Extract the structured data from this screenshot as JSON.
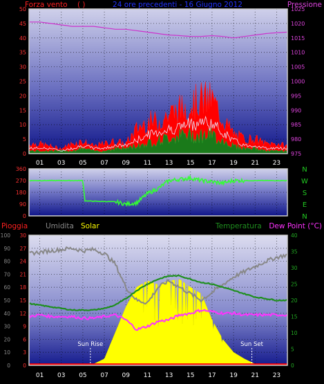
{
  "colors": {
    "wind": "#ff2020",
    "gust_fill": "#ff0000",
    "avg_wind": "#1c8a1c",
    "pressure": "#cc33cc",
    "direction": "#33ff33",
    "humidity": "#888888",
    "solar": "#ffff00",
    "temperature": "#1f8f1f",
    "dewpoint": "#ff33ff",
    "rain": "#ff0000",
    "title": "#2233ff",
    "frame": "#cfcfcf"
  },
  "chart_data": [
    {
      "type": "area",
      "name": "wind_pressure",
      "title": "24 ore precedenti  - 16 Giugno 2012",
      "left_label": "Forza vento",
      "left_unit": "( )",
      "right_label": "Pressione",
      "left_ticks": [
        "50",
        "45",
        "40",
        "35",
        "30",
        "25",
        "20",
        "15",
        "10",
        "5",
        "0"
      ],
      "right_ticks": [
        "1025",
        "1020",
        "1015",
        "1010",
        "1005",
        "1000",
        "995",
        "990",
        "985",
        "980",
        "975"
      ],
      "x_ticks": [
        "01",
        "03",
        "05",
        "07",
        "09",
        "11",
        "13",
        "15",
        "17",
        "19",
        "21",
        "23"
      ],
      "ylim_left": [
        0,
        50
      ],
      "ylim_right": [
        975,
        1025
      ],
      "x_hours": [
        0,
        1,
        2,
        3,
        4,
        5,
        6,
        7,
        8,
        9,
        10,
        11,
        12,
        13,
        14,
        15,
        16,
        17,
        18,
        19,
        20,
        21,
        22,
        23,
        24
      ],
      "gust": [
        4,
        4,
        3,
        2,
        4,
        5,
        3,
        4,
        5,
        4,
        10,
        13,
        13,
        16,
        18,
        20,
        22,
        22,
        14,
        8,
        6,
        6,
        4,
        4,
        3
      ],
      "wind": [
        2,
        2,
        2,
        1,
        2,
        3,
        2,
        2,
        3,
        3,
        5,
        7,
        8,
        9,
        10,
        11,
        12,
        11,
        8,
        5,
        3,
        3,
        2,
        2,
        2
      ],
      "avg_wind": [
        1,
        1,
        1,
        1,
        1,
        2,
        1,
        1,
        2,
        2,
        3,
        4,
        5,
        6,
        7,
        7,
        7,
        7,
        5,
        3,
        2,
        2,
        1,
        1,
        1
      ],
      "pressure": [
        1020.5,
        1020.5,
        1020.0,
        1019.5,
        1019.0,
        1019.0,
        1019.0,
        1018.5,
        1018.0,
        1018.0,
        1017.5,
        1017.0,
        1016.5,
        1016.0,
        1015.8,
        1015.5,
        1015.5,
        1015.8,
        1015.5,
        1015.0,
        1015.5,
        1016.0,
        1016.5,
        1016.8,
        1017.0
      ]
    },
    {
      "type": "line",
      "name": "wind_direction",
      "left_ticks": [
        "360",
        "270",
        "180",
        "90",
        "0"
      ],
      "right_ticks": [
        "N",
        "W",
        "S",
        "E",
        "N"
      ],
      "ylim": [
        0,
        360
      ],
      "x_hours": [
        0,
        1,
        2,
        3,
        4,
        5,
        5.2,
        6,
        7,
        8,
        9,
        10,
        11,
        12,
        13,
        14,
        15,
        16,
        17,
        18,
        19,
        20,
        21,
        22,
        23,
        24
      ],
      "direction": [
        270,
        270,
        270,
        270,
        270,
        270,
        115,
        112,
        110,
        108,
        90,
        100,
        170,
        210,
        270,
        280,
        290,
        270,
        260,
        250,
        270,
        270,
        270,
        270,
        270,
        270
      ]
    },
    {
      "type": "area",
      "name": "temperature_solar",
      "labels": {
        "rain": "Pioggia",
        "humidity": "Umidita",
        "solar": "Solar",
        "temperature": "Temperatura",
        "dewpoint": "Dew Point (°C)"
      },
      "left_ticks": [
        "100",
        "90",
        "80",
        "70",
        "60",
        "50",
        "40",
        "30",
        "20",
        "10",
        "0"
      ],
      "rain_ticks": [
        "30",
        "27",
        "24",
        "21",
        "18",
        "15",
        "12",
        "9",
        "6",
        "3",
        "0"
      ],
      "right_ticks": [
        "40",
        "35",
        "30",
        "25",
        "20",
        "15",
        "10",
        "5",
        "0"
      ],
      "x_ticks": [
        "01",
        "03",
        "05",
        "07",
        "09",
        "11",
        "13",
        "15",
        "17",
        "19",
        "21",
        "23"
      ],
      "sun_rise": {
        "label": "Sun Rise",
        "hour": 5.7
      },
      "sun_set": {
        "label": "Sun Set",
        "hour": 20.7
      },
      "x_hours": [
        0,
        1,
        2,
        3,
        4,
        5,
        6,
        7,
        8,
        9,
        10,
        11,
        12,
        13,
        14,
        15,
        16,
        17,
        18,
        19,
        20,
        21,
        22,
        23,
        24
      ],
      "humidity": [
        86,
        87,
        88,
        89,
        90,
        88,
        89,
        86,
        78,
        60,
        50,
        48,
        60,
        65,
        60,
        55,
        50,
        56,
        62,
        68,
        72,
        76,
        80,
        83,
        85
      ],
      "solar_pct": [
        0,
        0,
        0,
        0,
        0,
        0,
        1,
        5,
        25,
        45,
        60,
        65,
        62,
        65,
        66,
        60,
        55,
        35,
        20,
        10,
        5,
        1,
        0,
        0,
        0
      ],
      "temperature": [
        19,
        18.5,
        18,
        17.5,
        17,
        17,
        17,
        17.5,
        18.5,
        20.5,
        23,
        25,
        26.5,
        27.5,
        27.5,
        26.5,
        25.5,
        25,
        24,
        23,
        22,
        21,
        20.5,
        20,
        20
      ],
      "dewpoint": [
        15,
        15.5,
        15,
        15,
        15,
        14.5,
        14.5,
        15,
        15.5,
        14,
        11,
        12,
        13.5,
        14,
        15.5,
        16,
        17,
        16.5,
        16,
        16,
        15.5,
        15.5,
        15.5,
        15.5,
        15.5
      ],
      "rain": [
        0,
        0,
        0,
        0,
        0,
        0,
        0,
        0,
        0,
        0,
        0,
        0,
        0,
        0,
        0,
        0,
        0,
        0,
        0,
        0,
        0,
        0,
        0,
        0,
        0
      ]
    }
  ]
}
